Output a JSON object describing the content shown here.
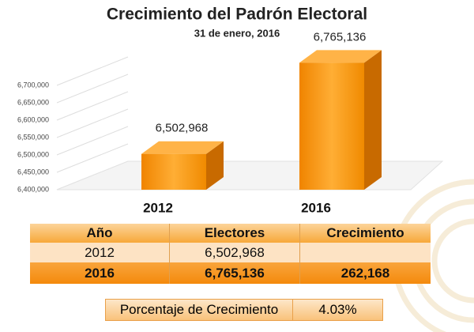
{
  "chart_data": {
    "type": "bar",
    "title": "Crecimiento del Padrón Electoral",
    "subtitle": "31 de enero, 2016",
    "categories": [
      "2012",
      "2016"
    ],
    "values": [
      6502968,
      6765136
    ],
    "value_labels": [
      "6,502,968",
      "6,765,136"
    ],
    "color": "#f5920f",
    "ylim": [
      6400000,
      6800000
    ],
    "yticks": [
      {
        "value": 6400000,
        "label": "6,400,000"
      },
      {
        "value": 6450000,
        "label": "6,450,000"
      },
      {
        "value": 6500000,
        "label": "6,500,000"
      },
      {
        "value": 6550000,
        "label": "6,550,000"
      },
      {
        "value": 6600000,
        "label": "6,600,000"
      },
      {
        "value": 6650000,
        "label": "6,650,000"
      },
      {
        "value": 6700000,
        "label": "6,700,000"
      }
    ],
    "grid": true
  },
  "table": {
    "header": [
      "Año",
      "Electores",
      "Crecimiento"
    ],
    "rows": [
      [
        "2012",
        "6,502,968"
      ],
      [
        "2016",
        "6,765,136",
        "262,168"
      ]
    ]
  },
  "summary": {
    "label": "Porcentaje de Crecimiento",
    "value": "4.03%"
  }
}
